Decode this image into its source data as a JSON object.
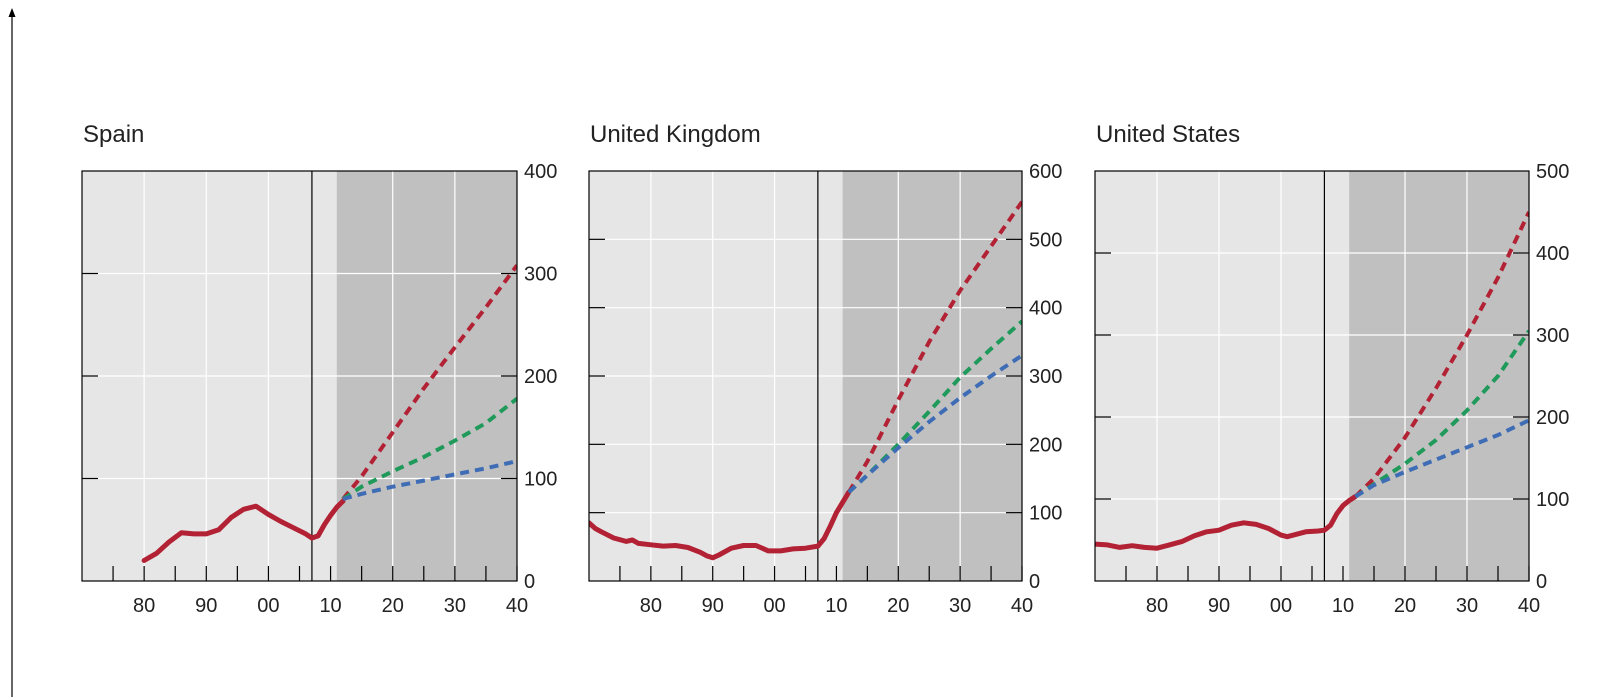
{
  "chart_data": [
    {
      "type": "line",
      "title": "Spain",
      "xlabel": "",
      "ylabel": "",
      "xlim": [
        1970,
        2040
      ],
      "ylim": [
        0,
        400
      ],
      "x_ticks": [
        1970,
        1975,
        1980,
        1985,
        1990,
        1995,
        2000,
        2005,
        2010,
        2015,
        2020,
        2025,
        2030,
        2035,
        2040
      ],
      "x_tick_labels": [
        {
          "x": 1980,
          "label": "80"
        },
        {
          "x": 1990,
          "label": "90"
        },
        {
          "x": 2000,
          "label": "00"
        },
        {
          "x": 2010,
          "label": "10"
        },
        {
          "x": 2020,
          "label": "20"
        },
        {
          "x": 2030,
          "label": "30"
        },
        {
          "x": 2040,
          "label": "40"
        }
      ],
      "x_grid": [
        1980,
        1990,
        2000,
        2020,
        2030
      ],
      "y_grid": [
        100,
        200,
        300
      ],
      "y_ticks": [
        0,
        100,
        200,
        300,
        400
      ],
      "y_tick_labels": [
        "0",
        "100",
        "200",
        "300",
        "400"
      ],
      "y_axis_side": "right",
      "vline_x": 2007,
      "projection_shade_from": 2011,
      "series": [
        {
          "style": "solid",
          "color": "#b22234",
          "points": [
            [
              1980,
              20
            ],
            [
              1982,
              27
            ],
            [
              1984,
              38
            ],
            [
              1986,
              47
            ],
            [
              1988,
              46
            ],
            [
              1990,
              46
            ],
            [
              1992,
              50
            ],
            [
              1994,
              62
            ],
            [
              1996,
              70
            ],
            [
              1998,
              73
            ],
            [
              2000,
              65
            ],
            [
              2002,
              58
            ],
            [
              2004,
              52
            ],
            [
              2006,
              46
            ],
            [
              2007,
              42
            ],
            [
              2008,
              44
            ],
            [
              2009,
              55
            ],
            [
              2010,
              64
            ],
            [
              2011,
              72
            ],
            [
              2012,
              78
            ]
          ]
        },
        {
          "style": "dashed",
          "color": "#b22234",
          "points": [
            [
              2012,
              80
            ],
            [
              2015,
              102
            ],
            [
              2020,
              145
            ],
            [
              2025,
              188
            ],
            [
              2030,
              228
            ],
            [
              2035,
              267
            ],
            [
              2040,
              308
            ]
          ]
        },
        {
          "style": "dashed",
          "color": "#1f9a5a",
          "points": [
            [
              2012,
              80
            ],
            [
              2015,
              92
            ],
            [
              2020,
              107
            ],
            [
              2025,
              121
            ],
            [
              2030,
              137
            ],
            [
              2035,
              154
            ],
            [
              2040,
              178
            ]
          ]
        },
        {
          "style": "dashed",
          "color": "#3f6db5",
          "points": [
            [
              2012,
              80
            ],
            [
              2015,
              85
            ],
            [
              2020,
              92
            ],
            [
              2025,
              98
            ],
            [
              2030,
              104
            ],
            [
              2035,
              110
            ],
            [
              2040,
              117
            ]
          ]
        }
      ]
    },
    {
      "type": "line",
      "title": "United Kingdom",
      "xlabel": "",
      "ylabel": "",
      "xlim": [
        1970,
        2040
      ],
      "ylim": [
        0,
        600
      ],
      "x_ticks": [
        1970,
        1975,
        1980,
        1985,
        1990,
        1995,
        2000,
        2005,
        2010,
        2015,
        2020,
        2025,
        2030,
        2035,
        2040
      ],
      "x_tick_labels": [
        {
          "x": 1980,
          "label": "80"
        },
        {
          "x": 1990,
          "label": "90"
        },
        {
          "x": 2000,
          "label": "00"
        },
        {
          "x": 2010,
          "label": "10"
        },
        {
          "x": 2020,
          "label": "20"
        },
        {
          "x": 2030,
          "label": "30"
        },
        {
          "x": 2040,
          "label": "40"
        }
      ],
      "x_grid": [
        1980,
        1990,
        2000,
        2020,
        2030
      ],
      "y_grid": [
        100,
        200,
        300,
        400,
        500
      ],
      "y_ticks": [
        0,
        100,
        200,
        300,
        400,
        500,
        600
      ],
      "y_tick_labels": [
        "0",
        "100",
        "200",
        "300",
        "400",
        "500",
        "600"
      ],
      "y_axis_side": "right",
      "vline_x": 2007,
      "projection_shade_from": 2011,
      "series": [
        {
          "style": "solid",
          "color": "#b22234",
          "points": [
            [
              1970,
              85
            ],
            [
              1971,
              77
            ],
            [
              1972,
              72
            ],
            [
              1974,
              63
            ],
            [
              1976,
              58
            ],
            [
              1977,
              60
            ],
            [
              1978,
              55
            ],
            [
              1980,
              53
            ],
            [
              1982,
              51
            ],
            [
              1984,
              52
            ],
            [
              1986,
              49
            ],
            [
              1988,
              42
            ],
            [
              1989,
              37
            ],
            [
              1990,
              34
            ],
            [
              1991,
              38
            ],
            [
              1993,
              48
            ],
            [
              1995,
              52
            ],
            [
              1997,
              52
            ],
            [
              1999,
              44
            ],
            [
              2001,
              44
            ],
            [
              2003,
              47
            ],
            [
              2005,
              48
            ],
            [
              2007,
              51
            ],
            [
              2008,
              62
            ],
            [
              2009,
              80
            ],
            [
              2010,
              100
            ],
            [
              2011,
              115
            ],
            [
              2012,
              130
            ]
          ]
        },
        {
          "style": "dashed",
          "color": "#b22234",
          "points": [
            [
              2012,
              130
            ],
            [
              2015,
              175
            ],
            [
              2020,
              265
            ],
            [
              2025,
              350
            ],
            [
              2030,
              425
            ],
            [
              2035,
              490
            ],
            [
              2040,
              555
            ]
          ]
        },
        {
          "style": "dashed",
          "color": "#1f9a5a",
          "points": [
            [
              2012,
              130
            ],
            [
              2015,
              155
            ],
            [
              2020,
              200
            ],
            [
              2025,
              248
            ],
            [
              2030,
              298
            ],
            [
              2035,
              340
            ],
            [
              2040,
              380
            ]
          ]
        },
        {
          "style": "dashed",
          "color": "#3f6db5",
          "points": [
            [
              2012,
              130
            ],
            [
              2015,
              155
            ],
            [
              2020,
              195
            ],
            [
              2025,
              233
            ],
            [
              2030,
              268
            ],
            [
              2035,
              300
            ],
            [
              2040,
              330
            ]
          ]
        }
      ]
    },
    {
      "type": "line",
      "title": "United States",
      "xlabel": "",
      "ylabel": "",
      "xlim": [
        1970,
        2040
      ],
      "ylim": [
        0,
        500
      ],
      "x_ticks": [
        1970,
        1975,
        1980,
        1985,
        1990,
        1995,
        2000,
        2005,
        2010,
        2015,
        2020,
        2025,
        2030,
        2035,
        2040
      ],
      "x_tick_labels": [
        {
          "x": 1980,
          "label": "80"
        },
        {
          "x": 1990,
          "label": "90"
        },
        {
          "x": 2000,
          "label": "00"
        },
        {
          "x": 2010,
          "label": "10"
        },
        {
          "x": 2020,
          "label": "20"
        },
        {
          "x": 2030,
          "label": "30"
        },
        {
          "x": 2040,
          "label": "40"
        }
      ],
      "x_grid": [
        1980,
        1990,
        2000,
        2020,
        2030
      ],
      "y_grid": [
        100,
        200,
        300,
        400
      ],
      "y_ticks": [
        0,
        100,
        200,
        300,
        400,
        500
      ],
      "y_tick_labels": [
        "0",
        "100",
        "200",
        "300",
        "400",
        "500"
      ],
      "y_axis_side": "right",
      "vline_x": 2007,
      "projection_shade_from": 2011,
      "series": [
        {
          "style": "solid",
          "color": "#b22234",
          "points": [
            [
              1970,
              45
            ],
            [
              1972,
              44
            ],
            [
              1974,
              41
            ],
            [
              1976,
              43
            ],
            [
              1978,
              41
            ],
            [
              1980,
              40
            ],
            [
              1982,
              44
            ],
            [
              1984,
              48
            ],
            [
              1986,
              55
            ],
            [
              1988,
              60
            ],
            [
              1990,
              62
            ],
            [
              1992,
              68
            ],
            [
              1994,
              71
            ],
            [
              1996,
              69
            ],
            [
              1998,
              64
            ],
            [
              2000,
              56
            ],
            [
              2001,
              54
            ],
            [
              2002,
              56
            ],
            [
              2004,
              60
            ],
            [
              2006,
              61
            ],
            [
              2007,
              62
            ],
            [
              2008,
              68
            ],
            [
              2009,
              82
            ],
            [
              2010,
              92
            ],
            [
              2011,
              98
            ],
            [
              2012,
              103
            ]
          ]
        },
        {
          "style": "dashed",
          "color": "#b22234",
          "points": [
            [
              2012,
              103
            ],
            [
              2015,
              125
            ],
            [
              2020,
              175
            ],
            [
              2025,
              235
            ],
            [
              2030,
              300
            ],
            [
              2035,
              370
            ],
            [
              2040,
              450
            ]
          ]
        },
        {
          "style": "dashed",
          "color": "#1f9a5a",
          "points": [
            [
              2012,
              103
            ],
            [
              2015,
              118
            ],
            [
              2020,
              143
            ],
            [
              2025,
              172
            ],
            [
              2030,
              208
            ],
            [
              2035,
              250
            ],
            [
              2040,
              305
            ]
          ]
        },
        {
          "style": "dashed",
          "color": "#3f6db5",
          "points": [
            [
              2012,
              103
            ],
            [
              2015,
              117
            ],
            [
              2020,
              133
            ],
            [
              2025,
              148
            ],
            [
              2030,
              163
            ],
            [
              2035,
              178
            ],
            [
              2040,
              196
            ]
          ]
        }
      ]
    }
  ]
}
